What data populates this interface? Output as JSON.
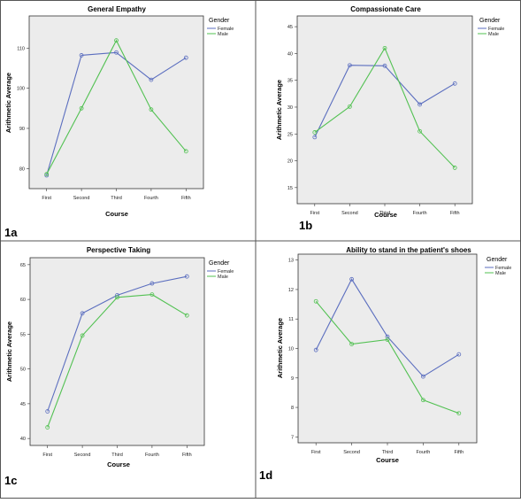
{
  "colors": {
    "female": "#5b6ebf",
    "male": "#52c152",
    "plot_bg": "#ececec"
  },
  "chart_data": [
    {
      "panel_tag": "1a",
      "type": "line",
      "title": "General Empathy",
      "xlabel": "Course",
      "ylabel": "Arithmetic Average",
      "categories": [
        "First",
        "Second",
        "Third",
        "Fourth",
        "Fifth"
      ],
      "ylim": [
        75,
        118
      ],
      "yticks": [
        80,
        90,
        100,
        110
      ],
      "legend_title": "Gender",
      "legend_position": "top-right",
      "series": [
        {
          "name": "Female",
          "values": [
            78.3,
            108.2,
            108.9,
            102.1,
            107.6
          ]
        },
        {
          "name": "Male",
          "values": [
            78.6,
            95.0,
            111.9,
            94.7,
            84.3
          ]
        }
      ]
    },
    {
      "panel_tag": "1b",
      "type": "line",
      "title": "Compassionate Care",
      "xlabel": "Course",
      "ylabel": "Arithmetic Average",
      "categories": [
        "First",
        "Second",
        "Third",
        "Fourth",
        "Fifth"
      ],
      "ylim": [
        12,
        47
      ],
      "yticks": [
        15,
        20,
        25,
        30,
        35,
        40,
        45
      ],
      "legend_title": "Gender",
      "legend_position": "top-right",
      "series": [
        {
          "name": "Female",
          "values": [
            24.4,
            37.8,
            37.7,
            30.5,
            34.4
          ]
        },
        {
          "name": "Male",
          "values": [
            25.3,
            30.1,
            41.0,
            25.5,
            18.7
          ]
        }
      ]
    },
    {
      "panel_tag": "1c",
      "type": "line",
      "title": "Perspective Taking",
      "xlabel": "Course",
      "ylabel": "Arithmetic Average",
      "categories": [
        "First",
        "Second",
        "Third",
        "Fourth",
        "Fifth"
      ],
      "ylim": [
        39,
        66
      ],
      "yticks": [
        40,
        45,
        50,
        55,
        60,
        65
      ],
      "legend_title": "Gender",
      "legend_position": "top-right",
      "series": [
        {
          "name": "Female",
          "values": [
            43.9,
            58.0,
            60.6,
            62.3,
            63.3
          ]
        },
        {
          "name": "Male",
          "values": [
            41.6,
            54.8,
            60.3,
            60.7,
            57.7
          ]
        }
      ]
    },
    {
      "panel_tag": "1d",
      "type": "line",
      "title": "Ability to stand in the patient's shoes",
      "xlabel": "Course",
      "ylabel": "Arithmetic Average",
      "categories": [
        "First",
        "Second",
        "Third",
        "Fourth",
        "Fifth"
      ],
      "ylim": [
        6.8,
        13.2
      ],
      "yticks": [
        7,
        8,
        9,
        10,
        11,
        12,
        13
      ],
      "legend_title": "Gender",
      "legend_position": "top-right",
      "series": [
        {
          "name": "Female",
          "values": [
            9.95,
            12.35,
            10.4,
            9.05,
            9.8
          ]
        },
        {
          "name": "Male",
          "values": [
            11.6,
            10.15,
            10.3,
            8.25,
            7.8
          ]
        }
      ]
    }
  ]
}
